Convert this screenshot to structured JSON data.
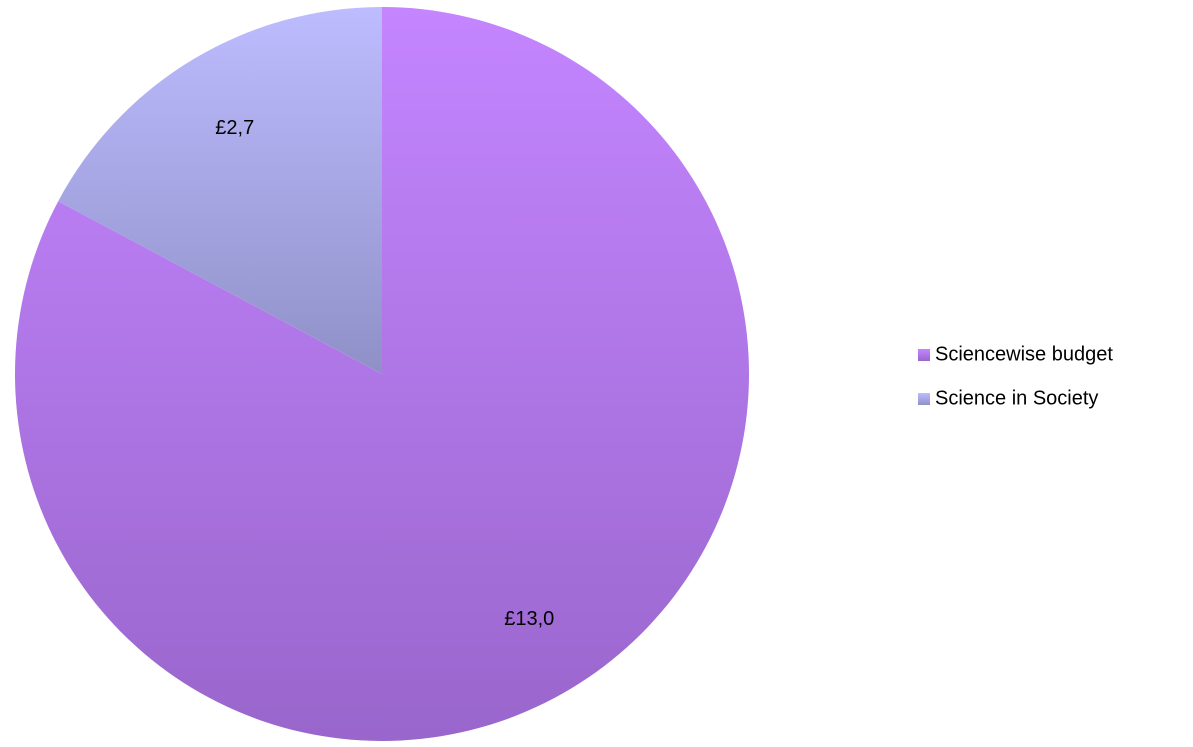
{
  "chart_data": {
    "type": "pie",
    "categories": [
      "Sciencewise budget",
      "Science in Society"
    ],
    "values": [
      13.0,
      2.7
    ],
    "data_labels": [
      "£13,0",
      "£2,7"
    ],
    "colors": [
      "#b07ce8",
      "#aeaee6"
    ],
    "gradients": [
      {
        "from": "#c485ff",
        "to": "#9966cc"
      },
      {
        "from": "#bcbcff",
        "to": "#9090c8"
      }
    ],
    "start_angle_deg": 0,
    "direction": "clockwise",
    "legend": {
      "position": "right",
      "entries": [
        "Sciencewise budget",
        "Science in Society"
      ]
    },
    "title": ""
  }
}
